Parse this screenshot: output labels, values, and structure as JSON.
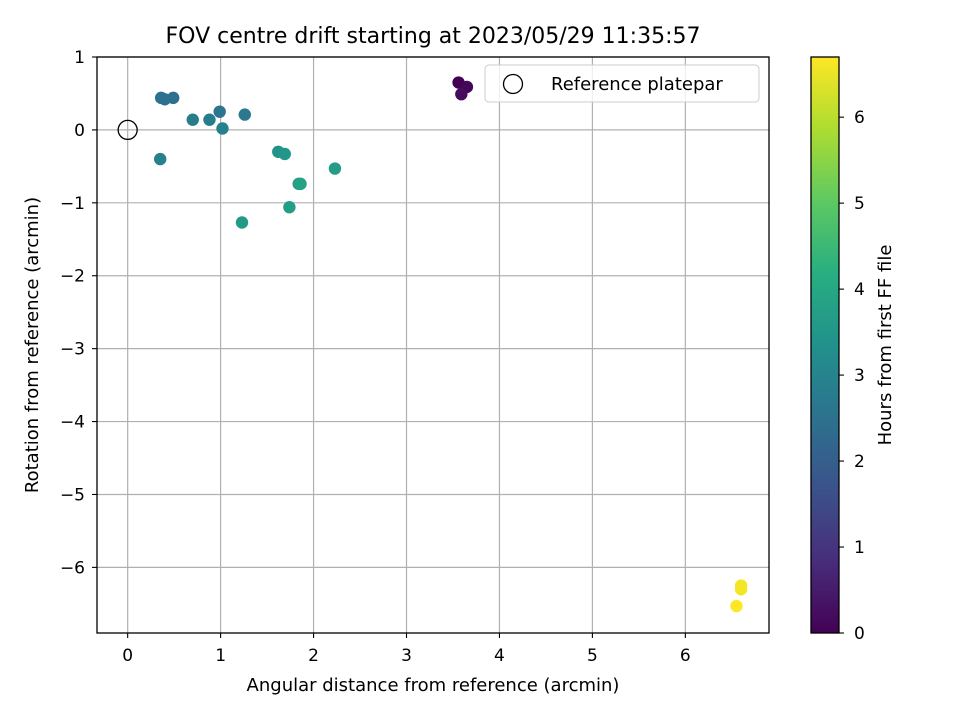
{
  "chart_data": {
    "type": "scatter",
    "title": "FOV centre drift starting at 2023/05/29 11:35:57",
    "xlabel": "Angular distance from reference (arcmin)",
    "ylabel": "Rotation from reference (arcmin)",
    "xlim": [
      -0.33,
      6.9
    ],
    "ylim": [
      -6.9,
      1.0
    ],
    "xticks": [
      0,
      1,
      2,
      3,
      4,
      5,
      6
    ],
    "yticks": [
      1,
      0,
      -1,
      -2,
      -3,
      -4,
      -5,
      -6
    ],
    "xtick_labels": [
      "0",
      "1",
      "2",
      "3",
      "4",
      "5",
      "6"
    ],
    "ytick_labels": [
      "1",
      "0",
      "−1",
      "−2",
      "−3",
      "−4",
      "−5",
      "−6"
    ],
    "grid": true,
    "legend": {
      "position": "top-right",
      "entries": [
        "Reference platepar"
      ]
    },
    "reference_point": {
      "x": 0,
      "y": 0
    },
    "colorbar": {
      "label": "Hours from first FF file",
      "colormap": "viridis",
      "range": [
        0,
        6.7
      ],
      "ticks": [
        0,
        1,
        2,
        3,
        4,
        5,
        6
      ],
      "tick_labels": [
        "0",
        "1",
        "2",
        "3",
        "4",
        "5",
        "6"
      ]
    },
    "points": [
      {
        "x": 3.56,
        "y": 0.65,
        "hours": 0.0
      },
      {
        "x": 3.65,
        "y": 0.59,
        "hours": 0.1
      },
      {
        "x": 3.59,
        "y": 0.49,
        "hours": 0.2
      },
      {
        "x": 0.49,
        "y": 0.44,
        "hours": 2.4
      },
      {
        "x": 0.36,
        "y": 0.44,
        "hours": 2.5
      },
      {
        "x": 0.4,
        "y": 0.42,
        "hours": 2.5
      },
      {
        "x": 0.99,
        "y": 0.25,
        "hours": 2.6
      },
      {
        "x": 1.26,
        "y": 0.21,
        "hours": 2.7
      },
      {
        "x": 0.7,
        "y": 0.14,
        "hours": 2.8
      },
      {
        "x": 0.88,
        "y": 0.14,
        "hours": 2.8
      },
      {
        "x": 1.02,
        "y": 0.02,
        "hours": 2.9
      },
      {
        "x": 0.35,
        "y": -0.4,
        "hours": 2.9
      },
      {
        "x": 1.62,
        "y": -0.3,
        "hours": 3.4
      },
      {
        "x": 1.69,
        "y": -0.33,
        "hours": 3.5
      },
      {
        "x": 2.23,
        "y": -0.53,
        "hours": 3.7
      },
      {
        "x": 1.84,
        "y": -0.74,
        "hours": 3.7
      },
      {
        "x": 1.86,
        "y": -0.74,
        "hours": 3.8
      },
      {
        "x": 1.74,
        "y": -1.06,
        "hours": 3.7
      },
      {
        "x": 1.23,
        "y": -1.27,
        "hours": 3.6
      },
      {
        "x": 6.6,
        "y": -6.25,
        "hours": 6.6
      },
      {
        "x": 6.6,
        "y": -6.3,
        "hours": 6.6
      },
      {
        "x": 6.55,
        "y": -6.53,
        "hours": 6.7
      }
    ]
  }
}
